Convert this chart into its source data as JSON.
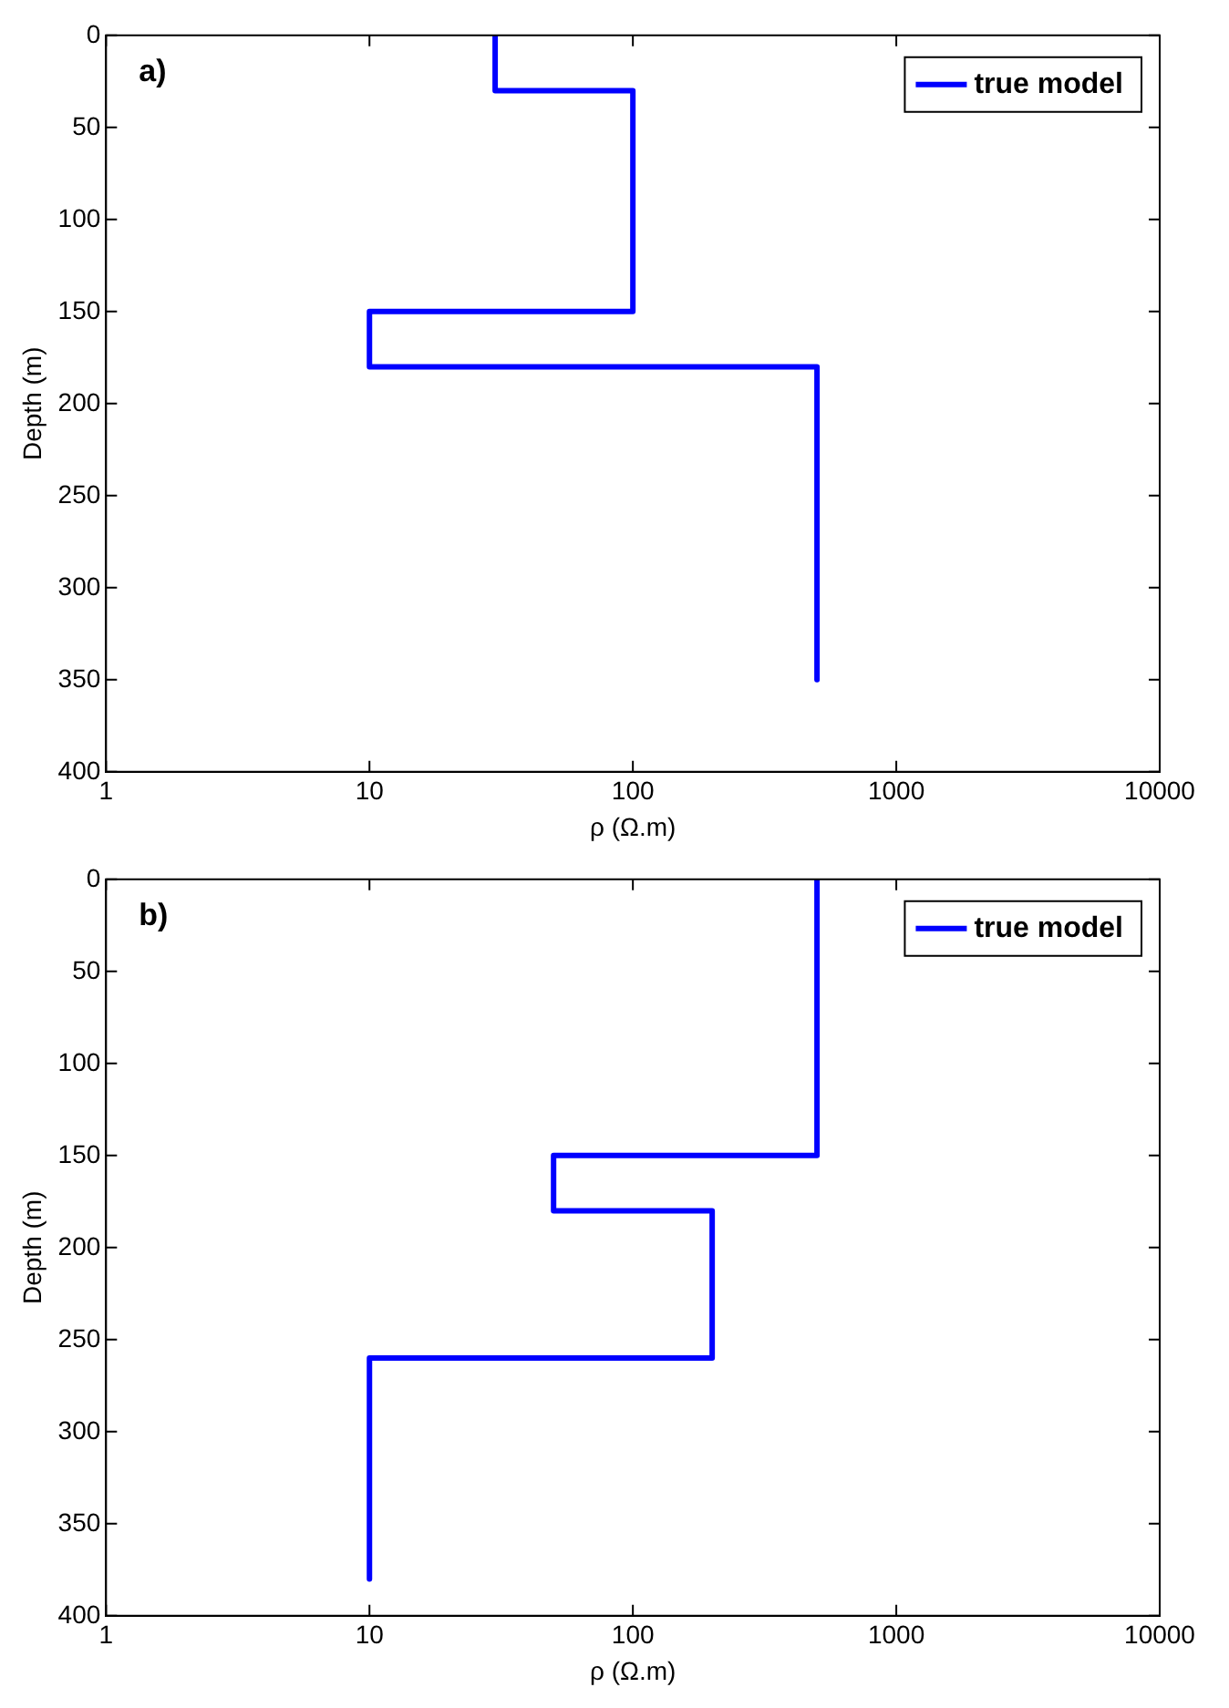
{
  "chart_data": [
    {
      "type": "line",
      "xlabel": "ρ (Ω.m)",
      "ylabel": "Depth (m)",
      "log": "x",
      "xlim": [
        1,
        10000
      ],
      "xticks": [
        1,
        10,
        100,
        1000,
        10000
      ],
      "ylim": [
        400,
        0
      ],
      "yticks": [
        0,
        50,
        100,
        150,
        200,
        250,
        300,
        350,
        400
      ],
      "grid": false,
      "legend": "top right",
      "marker": "none",
      "line_style": "solid",
      "annotations": [
        "a)"
      ],
      "series": [
        {
          "name": "true model",
          "color": "#0000ff",
          "x": [
            30,
            30,
            100,
            100,
            10,
            10,
            500,
            500
          ],
          "values": [
            0,
            30,
            30,
            150,
            150,
            180,
            180,
            350
          ]
        }
      ]
    },
    {
      "type": "line",
      "xlabel": "ρ (Ω.m)",
      "ylabel": "Depth (m)",
      "log": "x",
      "xlim": [
        1,
        10000
      ],
      "xticks": [
        1,
        10,
        100,
        1000,
        10000
      ],
      "ylim": [
        400,
        0
      ],
      "yticks": [
        0,
        50,
        100,
        150,
        200,
        250,
        300,
        350,
        400
      ],
      "grid": false,
      "legend": "top right",
      "marker": "none",
      "line_style": "solid",
      "annotations": [
        "b)"
      ],
      "series": [
        {
          "name": "true model",
          "color": "#0000ff",
          "x": [
            500,
            500,
            50,
            50,
            200,
            200,
            10,
            10
          ],
          "values": [
            0,
            150,
            150,
            180,
            180,
            260,
            260,
            380
          ]
        }
      ]
    }
  ]
}
